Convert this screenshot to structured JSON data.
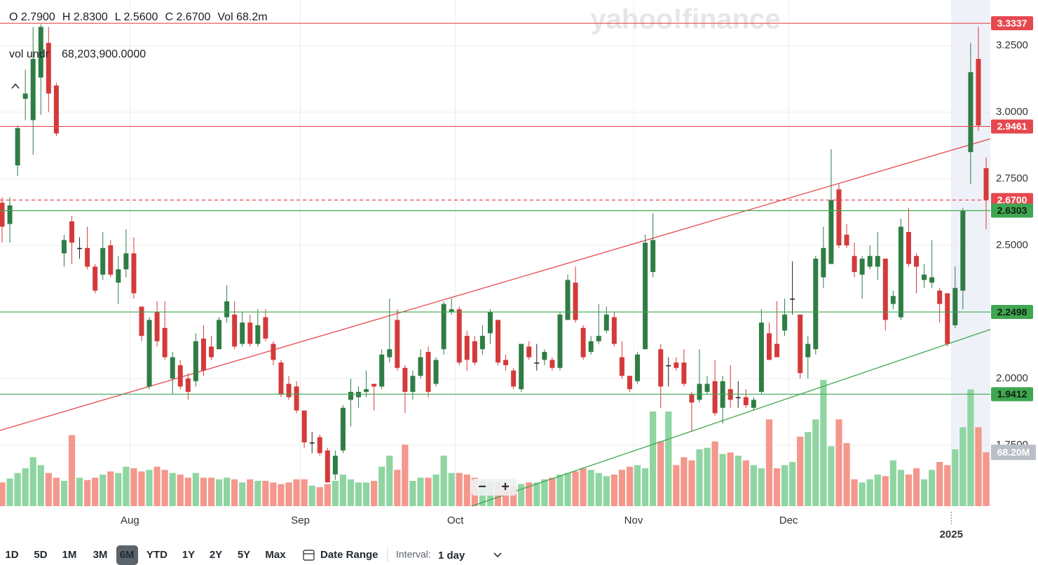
{
  "chart_data": {
    "type": "candlestick",
    "header": {
      "ohlc": [
        "O 2.7900",
        "H 2.8300",
        "L 2.5600",
        "C 2.6700",
        "Vol 68.2m"
      ],
      "vol_label": "vol undr",
      "vol_value": "68,203,900.0000"
    },
    "watermark": "yahoo!finance",
    "categories": [
      null,
      null,
      null,
      null,
      null,
      null,
      null,
      null,
      null,
      null,
      null,
      null,
      null,
      null,
      null,
      null,
      null,
      "Aug",
      null,
      null,
      null,
      null,
      null,
      null,
      null,
      null,
      null,
      null,
      null,
      null,
      null,
      null,
      null,
      null,
      null,
      null,
      null,
      null,
      null,
      "Sep",
      null,
      null,
      null,
      null,
      null,
      null,
      null,
      null,
      null,
      null,
      null,
      null,
      null,
      null,
      null,
      null,
      null,
      null,
      null,
      "Oct",
      null,
      null,
      null,
      null,
      null,
      null,
      null,
      null,
      null,
      null,
      null,
      null,
      null,
      null,
      null,
      null,
      null,
      null,
      null,
      null,
      null,
      null,
      "Nov",
      null,
      null,
      null,
      null,
      null,
      null,
      null,
      null,
      null,
      null,
      null,
      null,
      null,
      null,
      null,
      null,
      null,
      null,
      null,
      "Dec",
      null,
      null,
      null,
      null,
      null,
      null,
      null,
      null,
      null,
      null,
      null,
      null,
      null,
      null,
      null,
      null,
      null,
      null,
      null,
      null,
      "2025",
      null,
      null,
      null,
      null
    ],
    "open": [
      2.66,
      2.58,
      2.8,
      3.05,
      2.97,
      3.13,
      3.26,
      3.1,
      2.47,
      2.59,
      2.49,
      2.49,
      2.42,
      2.39,
      2.5,
      2.36,
      2.41,
      2.47,
      2.27,
      1.97,
      2.25,
      2.19,
      2.0,
      2.05,
      2.0,
      1.99,
      2.15,
      2.12,
      2.11,
      2.23,
      2.24,
      2.13,
      2.21,
      2.13,
      2.23,
      2.13,
      2.06,
      1.98,
      1.97,
      1.88,
      1.76,
      1.78,
      1.73,
      1.64,
      1.73,
      1.92,
      1.93,
      1.95,
      1.98,
      1.97,
      2.08,
      2.22,
      2.04,
      1.95,
      2.01,
      2.1,
      1.98,
      2.11,
      2.25,
      2.26,
      2.16,
      2.14,
      2.11,
      2.17,
      2.22,
      2.07,
      2.03,
      1.96,
      2.12,
      2.06,
      2.07,
      2.07,
      2.04,
      2.22,
      2.36,
      2.19,
      2.1,
      2.14,
      2.18,
      2.23,
      2.08,
      2.01,
      1.99,
      2.11,
      2.4,
      2.11,
      2.05,
      2.06,
      2.06,
      1.94,
      1.92,
      1.95,
      1.99,
      1.89,
      1.96,
      1.93,
      1.93,
      1.89,
      1.95,
      2.17,
      2.13,
      2.18,
      2.3,
      2.24,
      2.08,
      2.11,
      2.38,
      2.43,
      2.71,
      2.54,
      2.46,
      2.39,
      2.42,
      2.42,
      2.45,
      2.28,
      2.23,
      2.55,
      2.46,
      2.37,
      2.36,
      2.33,
      2.32,
      2.2,
      2.33,
      2.85,
      3.2,
      2.79
    ],
    "high": [
      2.68,
      2.68,
      2.95,
      3.16,
      3.32,
      3.33,
      3.32,
      3.11,
      2.54,
      2.61,
      2.53,
      2.57,
      2.43,
      2.55,
      2.52,
      2.46,
      2.56,
      2.53,
      2.27,
      2.23,
      2.29,
      2.29,
      2.1,
      2.07,
      2.02,
      2.17,
      2.2,
      2.16,
      2.23,
      2.35,
      2.29,
      2.25,
      2.24,
      2.26,
      2.26,
      2.14,
      2.07,
      2.01,
      1.99,
      1.88,
      1.8,
      1.79,
      1.74,
      1.73,
      1.9,
      2.0,
      1.97,
      2.03,
      1.98,
      2.11,
      2.3,
      2.26,
      2.05,
      2.03,
      2.11,
      2.12,
      2.08,
      2.29,
      2.3,
      2.27,
      2.18,
      2.16,
      2.2,
      2.26,
      2.22,
      2.09,
      2.04,
      2.13,
      2.14,
      2.13,
      2.11,
      2.08,
      2.25,
      2.39,
      2.42,
      2.2,
      2.16,
      2.28,
      2.27,
      2.25,
      2.14,
      2.01,
      2.1,
      2.54,
      2.62,
      2.13,
      2.08,
      2.08,
      2.11,
      1.95,
      2.11,
      2.01,
      2.07,
      2.01,
      2.05,
      1.99,
      1.96,
      1.93,
      2.26,
      2.21,
      2.29,
      2.3,
      2.44,
      2.24,
      2.16,
      2.46,
      2.57,
      2.86,
      2.73,
      2.58,
      2.51,
      2.46,
      2.5,
      2.55,
      2.45,
      2.33,
      2.6,
      2.64,
      2.47,
      2.43,
      2.52,
      2.34,
      2.32,
      2.42,
      2.64,
      3.26,
      3.32,
      2.83
    ],
    "low": [
      2.51,
      2.51,
      2.76,
      2.97,
      2.84,
      2.99,
      3.0,
      2.91,
      2.42,
      2.43,
      2.45,
      2.41,
      2.32,
      2.37,
      2.38,
      2.28,
      2.38,
      2.3,
      2.14,
      1.96,
      2.12,
      2.07,
      1.94,
      1.96,
      1.92,
      1.97,
      2.01,
      2.07,
      2.11,
      2.21,
      2.11,
      2.12,
      2.12,
      2.12,
      2.14,
      2.05,
      1.93,
      1.92,
      1.87,
      1.74,
      1.72,
      1.71,
      1.61,
      1.62,
      1.72,
      1.82,
      1.89,
      1.93,
      1.88,
      1.96,
      2.06,
      2.03,
      1.87,
      1.92,
      2.0,
      1.93,
      1.97,
      2.09,
      2.24,
      2.05,
      2.03,
      2.05,
      2.09,
      2.13,
      2.05,
      2.03,
      1.96,
      1.95,
      2.07,
      2.03,
      2.05,
      2.03,
      2.03,
      2.22,
      2.21,
      2.07,
      2.09,
      2.13,
      2.17,
      2.12,
      2.0,
      1.95,
      1.98,
      2.11,
      2.38,
      1.89,
      1.97,
      2.03,
      1.97,
      1.8,
      1.91,
      1.94,
      1.86,
      1.83,
      1.89,
      1.89,
      1.89,
      1.88,
      1.94,
      2.07,
      2.08,
      2.16,
      2.24,
      2.0,
      2.0,
      2.09,
      2.34,
      2.43,
      2.49,
      2.49,
      2.38,
      2.3,
      2.41,
      2.37,
      2.18,
      2.26,
      2.22,
      2.42,
      2.32,
      2.34,
      2.34,
      2.21,
      2.12,
      2.19,
      2.26,
      2.73,
      2.93,
      2.56
    ],
    "close": [
      2.57,
      2.65,
      2.94,
      3.07,
      3.2,
      3.32,
      3.07,
      2.92,
      2.52,
      2.51,
      2.49,
      2.42,
      2.33,
      2.49,
      2.39,
      2.41,
      2.47,
      2.32,
      2.16,
      2.22,
      2.14,
      2.08,
      2.08,
      1.97,
      1.95,
      2.14,
      2.03,
      2.08,
      2.22,
      2.29,
      2.12,
      2.21,
      2.13,
      2.2,
      2.15,
      2.07,
      1.94,
      1.93,
      1.88,
      1.76,
      1.76,
      1.72,
      1.61,
      1.71,
      1.89,
      1.95,
      1.95,
      1.96,
      1.97,
      2.09,
      2.11,
      2.04,
      1.95,
      2.01,
      2.08,
      1.95,
      2.07,
      2.28,
      2.26,
      2.06,
      2.07,
      2.06,
      2.16,
      2.25,
      2.06,
      2.05,
      1.97,
      2.13,
      2.08,
      2.06,
      2.1,
      2.04,
      2.24,
      2.37,
      2.22,
      2.08,
      2.14,
      2.16,
      2.24,
      2.13,
      2.01,
      1.96,
      2.09,
      2.51,
      2.52,
      1.97,
      2.05,
      2.04,
      1.98,
      1.91,
      1.98,
      1.98,
      1.87,
      1.99,
      1.92,
      1.93,
      1.9,
      1.92,
      2.21,
      2.07,
      2.08,
      2.24,
      2.3,
      2.02,
      2.13,
      2.45,
      2.49,
      2.67,
      2.5,
      2.5,
      2.4,
      2.45,
      2.46,
      2.46,
      2.22,
      2.31,
      2.57,
      2.43,
      2.42,
      2.39,
      2.38,
      2.28,
      2.13,
      2.34,
      2.63,
      3.15,
      2.95,
      2.67
    ],
    "volume": [
      30,
      35,
      42,
      48,
      62,
      52,
      42,
      36,
      32,
      90,
      36,
      33,
      36,
      40,
      44,
      42,
      50,
      48,
      44,
      46,
      50,
      46,
      42,
      40,
      36,
      42,
      36,
      36,
      34,
      36,
      34,
      30,
      34,
      32,
      32,
      30,
      28,
      30,
      34,
      34,
      26,
      24,
      28,
      32,
      40,
      34,
      30,
      30,
      32,
      50,
      64,
      46,
      78,
      32,
      36,
      36,
      40,
      64,
      42,
      42,
      40,
      36,
      32,
      30,
      30,
      28,
      26,
      28,
      30,
      30,
      34,
      36,
      40,
      42,
      44,
      48,
      46,
      42,
      38,
      40,
      46,
      50,
      52,
      48,
      120,
      82,
      120,
      52,
      62,
      58,
      72,
      74,
      82,
      66,
      68,
      64,
      58,
      52,
      48,
      110,
      48,
      52,
      56,
      88,
      94,
      110,
      160,
      76,
      110,
      80,
      34,
      30,
      34,
      40,
      38,
      58,
      46,
      40,
      48,
      34,
      46,
      56,
      52,
      72,
      100,
      148,
      100,
      68.2039
    ],
    "volume_last_label": "68.20M",
    "up_color": "#2f7d45",
    "down_color": "#d43a3a",
    "up_volume_color": "#8fd5a2",
    "down_volume_color": "#f4978c",
    "ylim": [
      1.521,
      3.421
    ],
    "yticks": [
      {
        "value": 1.75,
        "label": "1.7500"
      },
      {
        "value": 2.0,
        "label": "2.0000"
      },
      {
        "value": 2.5,
        "label": "2.5000"
      },
      {
        "value": 2.75,
        "label": "2.7500"
      },
      {
        "value": 3.0,
        "label": "3.0000"
      },
      {
        "value": 3.25,
        "label": "3.2500"
      }
    ],
    "grid": true,
    "levels": [
      {
        "value": 3.3337,
        "label": "3.3337",
        "color": "#e5484d",
        "label_color": "#ffffff"
      },
      {
        "value": 2.9461,
        "label": "2.9461",
        "color": "#e5484d",
        "label_color": "#ffffff"
      },
      {
        "value": 2.67,
        "label": "2.6700",
        "color": "#e5484d",
        "label_color": "#ffffff",
        "dashed": true
      },
      {
        "value": 2.6303,
        "label": "2.6303",
        "color": "#3fa652",
        "label_color": "#10210f"
      },
      {
        "value": 2.2498,
        "label": "2.2498",
        "color": "#3fa652",
        "label_color": "#10210f"
      },
      {
        "value": 1.9412,
        "label": "1.9412",
        "color": "#3fa652",
        "label_color": "#10210f"
      }
    ],
    "zoom": [
      "−",
      "+"
    ],
    "toolbar": {
      "ranges": [
        "1D",
        "5D",
        "1M",
        "3M",
        "6M",
        "YTD",
        "1Y",
        "2Y",
        "5Y",
        "Max"
      ],
      "selected_index": 4,
      "date_range": "Date Range",
      "interval_label": "Interval:",
      "interval": "1 day"
    }
  }
}
